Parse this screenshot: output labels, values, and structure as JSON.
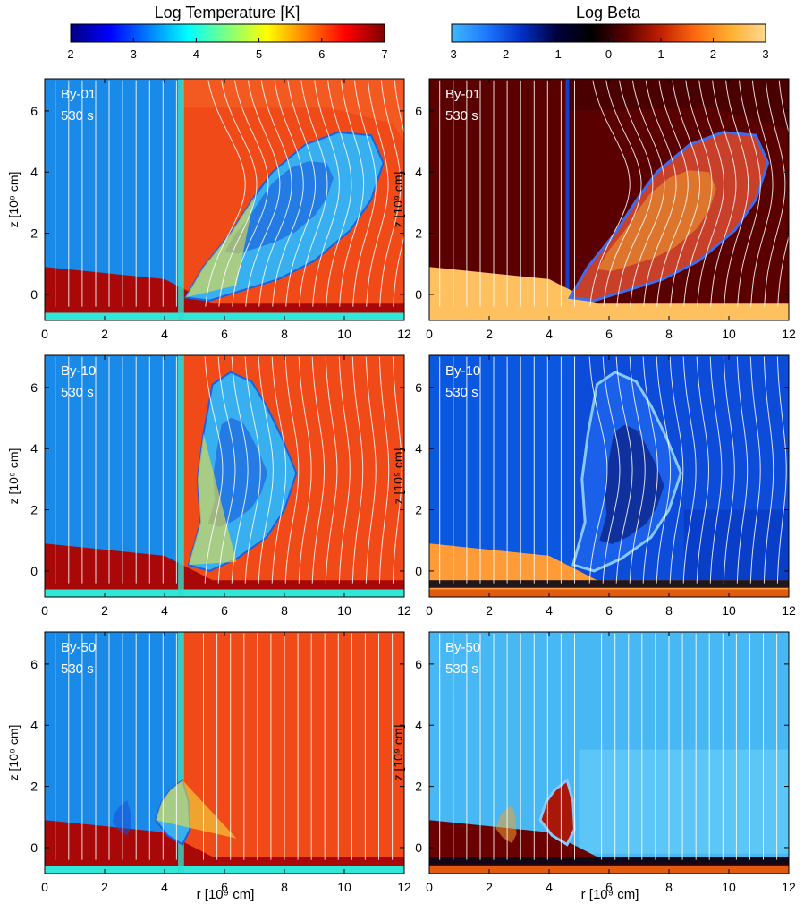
{
  "chart_data": {
    "type": "heatmap",
    "colorbars": [
      {
        "title": "Log Temperature [K]",
        "ticks": [
          "2",
          "3",
          "4",
          "5",
          "6",
          "7"
        ],
        "range": [
          2,
          7
        ],
        "colormap": [
          "#00007f",
          "#0000ff",
          "#0080ff",
          "#00ffff",
          "#80ff80",
          "#ffff00",
          "#ff8000",
          "#ff0000",
          "#7f0000"
        ]
      },
      {
        "title": "Log Beta",
        "ticks": [
          "-3",
          "-2",
          "-1",
          "0",
          "1",
          "2",
          "3"
        ],
        "range": [
          -3,
          3
        ],
        "colormap": [
          "#3fb8ff",
          "#1e78ff",
          "#0030c8",
          "#000040",
          "#000000",
          "#5a0000",
          "#c02000",
          "#ff6a10",
          "#ffb030",
          "#ffd890"
        ]
      }
    ],
    "x_ticks": [
      "0",
      "2",
      "4",
      "6",
      "8",
      "10",
      "12"
    ],
    "y_ticks": [
      "0",
      "2",
      "4",
      "6"
    ],
    "xlim": [
      0,
      12
    ],
    "ylim": [
      -0.85,
      7.05
    ],
    "xlabel": "r [10⁹ cm]",
    "ylabel": "z [10⁹ cm]",
    "panels": [
      {
        "row": 0,
        "col": 0,
        "label": "By-01",
        "time": "530 s",
        "quantity": "Log Temperature [K]"
      },
      {
        "row": 0,
        "col": 1,
        "label": "By-01",
        "time": "530 s",
        "quantity": "Log Beta"
      },
      {
        "row": 1,
        "col": 0,
        "label": "By-10",
        "time": "530 s",
        "quantity": "Log Temperature [K]"
      },
      {
        "row": 1,
        "col": 1,
        "label": "By-10",
        "time": "530 s",
        "quantity": "Log Beta"
      },
      {
        "row": 2,
        "col": 0,
        "label": "By-50",
        "time": "530 s",
        "quantity": "Log Temperature [K]"
      },
      {
        "row": 2,
        "col": 1,
        "label": "By-50",
        "time": "530 s",
        "quantity": "Log Beta"
      }
    ]
  },
  "colors": {
    "corona_temp": "#f04a18",
    "chromo_temp": "#a80808",
    "cool_temp": "#1a8ae8",
    "photo_temp": "#30e8d8",
    "beta_low": "#0c4cd8",
    "beta_mid": "#48b8f4",
    "beta_high": "#5a0000",
    "beta_dense": "#ffc060",
    "field_lines": "#ffffff"
  }
}
